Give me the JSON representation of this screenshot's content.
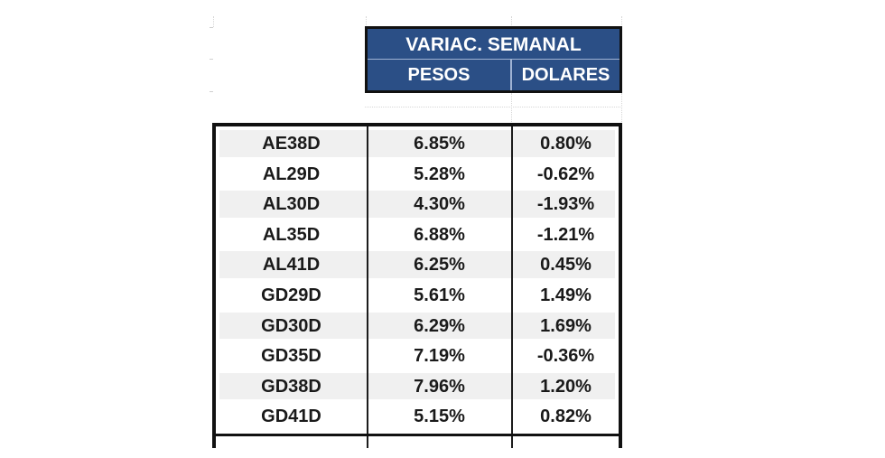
{
  "header": {
    "title": "VARIAC. SEMANAL",
    "col_pesos": "PESOS",
    "col_dolares": "DOLARES"
  },
  "rows": [
    {
      "ticker": "AE38D",
      "pesos": "6.85%",
      "dolares": "0.80%"
    },
    {
      "ticker": "AL29D",
      "pesos": "5.28%",
      "dolares": "-0.62%"
    },
    {
      "ticker": "AL30D",
      "pesos": "4.30%",
      "dolares": "-1.93%"
    },
    {
      "ticker": "AL35D",
      "pesos": "6.88%",
      "dolares": "-1.21%"
    },
    {
      "ticker": "AL41D",
      "pesos": "6.25%",
      "dolares": "0.45%"
    },
    {
      "ticker": "GD29D",
      "pesos": "5.61%",
      "dolares": "1.49%"
    },
    {
      "ticker": "GD30D",
      "pesos": "6.29%",
      "dolares": "1.69%"
    },
    {
      "ticker": "GD35D",
      "pesos": "7.19%",
      "dolares": "-0.36%"
    },
    {
      "ticker": "GD38D",
      "pesos": "7.96%",
      "dolares": "1.20%"
    },
    {
      "ticker": "GD41D",
      "pesos": "5.15%",
      "dolares": "0.82%"
    }
  ],
  "colors": {
    "header_bg": "#2b4f86",
    "header_text": "#ffffff",
    "border": "#111111",
    "row_shade": "#f0f0f0"
  }
}
